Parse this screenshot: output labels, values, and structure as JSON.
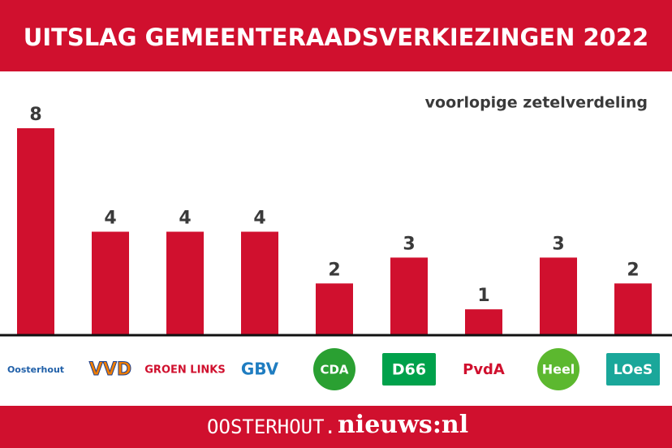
{
  "chart_data": {
    "type": "bar",
    "title": "UITSLAG GEMEENTERAADSVERKIEZINGEN 2022",
    "subtitle": "voorlopige zetelverdeling",
    "categories": [
      "Oosterhout",
      "VVD",
      "GROEN LINKS",
      "GBV",
      "CDA",
      "D66",
      "PvdA",
      "Heel",
      "LOeS"
    ],
    "values": [
      8,
      4,
      4,
      4,
      2,
      3,
      1,
      3,
      2
    ],
    "color": "#d0102e",
    "footer": [
      "OOSTERHOUT.",
      "nieuws:nl"
    ]
  }
}
